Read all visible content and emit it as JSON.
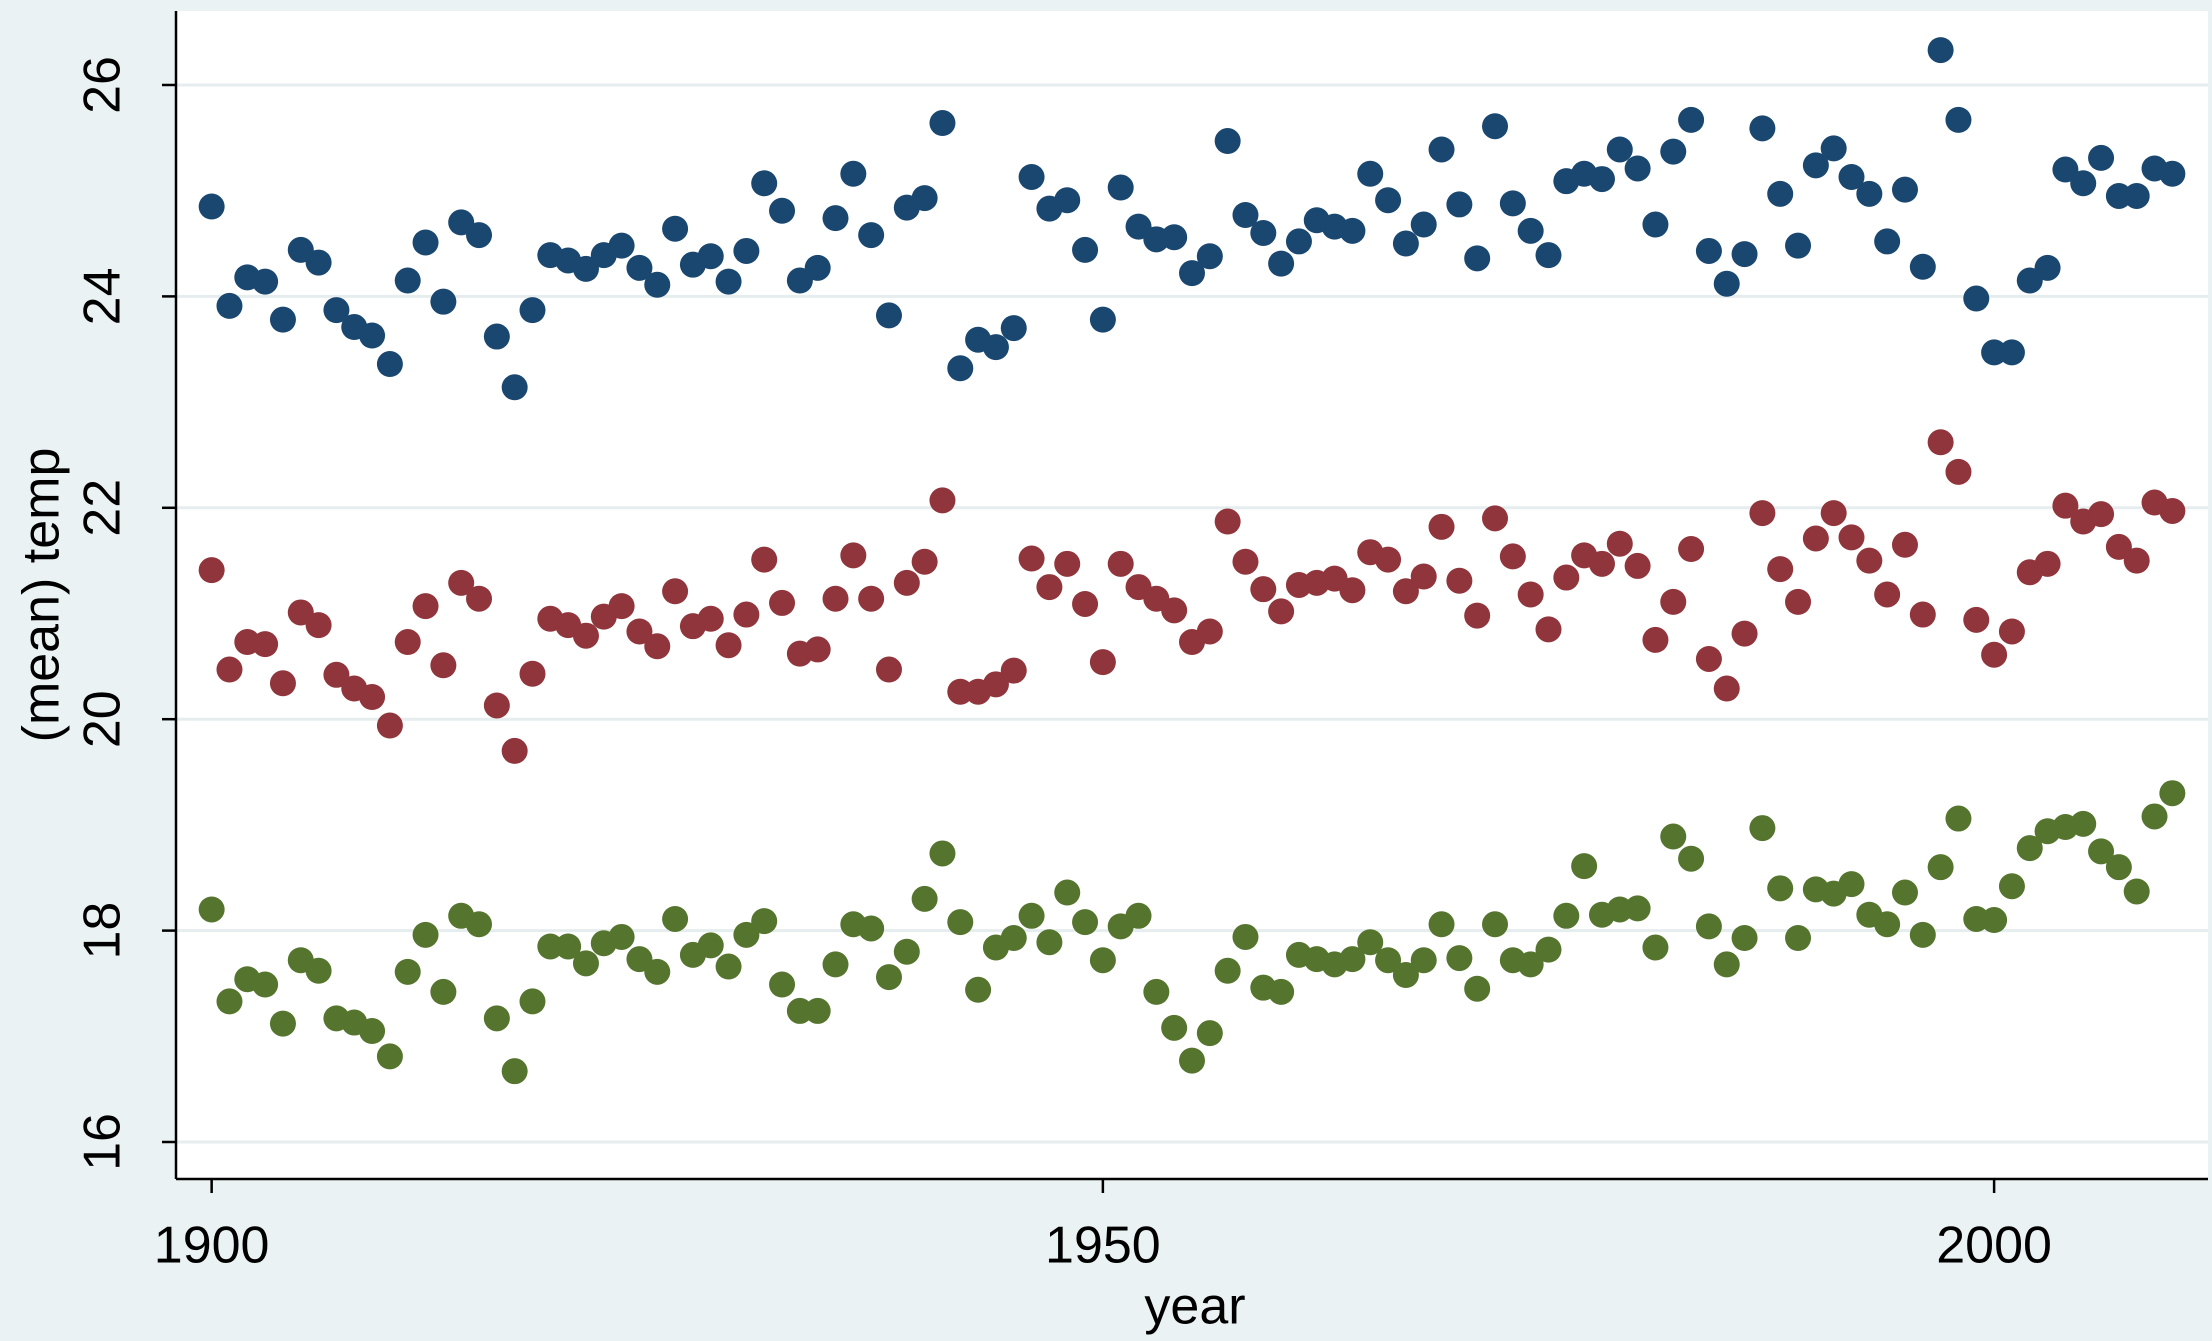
{
  "chart_data": {
    "type": "scatter",
    "x_label": "year",
    "y_label": "(mean) temp",
    "x": [
      1900,
      1901,
      1902,
      1903,
      1904,
      1905,
      1906,
      1907,
      1908,
      1909,
      1910,
      1911,
      1912,
      1913,
      1914,
      1915,
      1916,
      1917,
      1918,
      1919,
      1920,
      1921,
      1922,
      1923,
      1924,
      1925,
      1926,
      1927,
      1928,
      1929,
      1930,
      1931,
      1932,
      1933,
      1934,
      1935,
      1936,
      1937,
      1938,
      1939,
      1940,
      1941,
      1942,
      1943,
      1944,
      1945,
      1946,
      1947,
      1948,
      1949,
      1950,
      1951,
      1952,
      1953,
      1954,
      1955,
      1956,
      1957,
      1958,
      1959,
      1960,
      1961,
      1962,
      1963,
      1964,
      1965,
      1966,
      1967,
      1968,
      1969,
      1970,
      1971,
      1972,
      1973,
      1974,
      1975,
      1976,
      1977,
      1978,
      1979,
      1980,
      1981,
      1982,
      1983,
      1984,
      1985,
      1986,
      1987,
      1988,
      1989,
      1990,
      1991,
      1992,
      1993,
      1994,
      1995,
      1996,
      1997,
      1998,
      1999,
      2000,
      2001,
      2002,
      2003,
      2004,
      2005,
      2006,
      2007,
      2008,
      2009,
      2010
    ],
    "series": [
      {
        "color": "#1a476f",
        "values": [
          24.85,
          23.91,
          24.18,
          24.14,
          23.78,
          24.44,
          24.32,
          23.87,
          23.71,
          23.63,
          23.36,
          24.15,
          24.51,
          23.95,
          24.7,
          24.58,
          23.62,
          23.14,
          23.87,
          24.39,
          24.34,
          24.26,
          24.39,
          24.48,
          24.27,
          24.11,
          24.64,
          24.3,
          24.38,
          24.14,
          24.43,
          25.07,
          24.81,
          24.15,
          24.27,
          24.74,
          25.16,
          24.58,
          23.82,
          24.84,
          24.93,
          25.64,
          23.32,
          23.59,
          23.52,
          23.7,
          25.13,
          24.83,
          24.91,
          24.44,
          23.78,
          25.03,
          24.66,
          24.54,
          24.56,
          24.22,
          24.38,
          25.47,
          24.77,
          24.6,
          24.31,
          24.52,
          24.72,
          24.66,
          24.62,
          25.16,
          24.91,
          24.5,
          24.68,
          25.39,
          24.87,
          24.36,
          25.61,
          24.88,
          24.62,
          24.39,
          25.09,
          25.16,
          25.11,
          25.39,
          25.21,
          24.68,
          25.37,
          25.67,
          24.43,
          24.12,
          24.4,
          25.59,
          24.97,
          24.48,
          25.24,
          25.4,
          25.13,
          24.97,
          24.52,
          25.01,
          24.28,
          26.33,
          25.67,
          23.98,
          23.47,
          23.47,
          24.15,
          24.27,
          25.2,
          25.07,
          25.31,
          24.95,
          24.95,
          25.21,
          25.16
        ]
      },
      {
        "color": "#90353b",
        "values": [
          21.41,
          20.47,
          20.73,
          20.71,
          20.34,
          21.01,
          20.89,
          20.42,
          20.29,
          20.21,
          19.94,
          20.73,
          21.07,
          20.51,
          21.29,
          21.14,
          20.13,
          19.7,
          20.43,
          20.95,
          20.89,
          20.79,
          20.97,
          21.07,
          20.83,
          20.69,
          21.21,
          20.88,
          20.95,
          20.7,
          20.99,
          21.51,
          21.1,
          20.62,
          20.66,
          21.14,
          21.55,
          21.14,
          20.47,
          21.29,
          21.49,
          22.07,
          20.26,
          20.26,
          20.33,
          20.46,
          21.52,
          21.25,
          21.47,
          21.09,
          20.54,
          21.47,
          21.25,
          21.14,
          21.03,
          20.73,
          20.83,
          21.87,
          21.49,
          21.23,
          21.02,
          21.27,
          21.29,
          21.33,
          21.22,
          21.58,
          21.51,
          21.21,
          21.35,
          21.82,
          21.31,
          20.98,
          21.9,
          21.54,
          21.18,
          20.85,
          21.34,
          21.55,
          21.47,
          21.66,
          21.45,
          20.75,
          21.11,
          21.61,
          20.57,
          20.29,
          20.81,
          21.95,
          21.42,
          21.11,
          21.71,
          21.95,
          21.72,
          21.5,
          21.18,
          21.65,
          20.99,
          22.62,
          22.34,
          20.94,
          20.61,
          20.83,
          21.39,
          21.47,
          22.02,
          21.87,
          21.94,
          21.63,
          21.5,
          22.05,
          21.97
        ]
      },
      {
        "color": "#55752f",
        "values": [
          18.2,
          17.33,
          17.54,
          17.49,
          17.12,
          17.72,
          17.62,
          17.17,
          17.13,
          17.05,
          16.81,
          17.61,
          17.96,
          17.42,
          18.14,
          18.06,
          17.17,
          16.67,
          17.33,
          17.85,
          17.85,
          17.69,
          17.88,
          17.94,
          17.73,
          17.61,
          18.11,
          17.77,
          17.86,
          17.66,
          17.96,
          18.09,
          17.49,
          17.24,
          17.24,
          17.68,
          18.06,
          18.02,
          17.56,
          17.8,
          18.3,
          18.73,
          18.08,
          17.44,
          17.84,
          17.93,
          18.14,
          17.89,
          18.36,
          18.08,
          17.72,
          18.04,
          18.14,
          17.42,
          17.08,
          16.77,
          17.03,
          17.62,
          17.94,
          17.46,
          17.42,
          17.77,
          17.73,
          17.68,
          17.73,
          17.89,
          17.72,
          17.58,
          17.72,
          18.06,
          17.74,
          17.45,
          18.06,
          17.72,
          17.68,
          17.82,
          18.14,
          18.61,
          18.15,
          18.2,
          18.21,
          17.84,
          18.89,
          18.68,
          18.04,
          17.68,
          17.93,
          18.97,
          18.4,
          17.93,
          18.39,
          18.35,
          18.44,
          18.15,
          18.06,
          18.36,
          17.96,
          18.6,
          19.06,
          18.11,
          18.1,
          18.42,
          18.78,
          18.94,
          18.98,
          19.01,
          18.75,
          18.6,
          18.37,
          19.08,
          19.3
        ]
      }
    ],
    "xlim": [
      1898,
      2012
    ],
    "xticks": [
      1900,
      1950,
      2000
    ],
    "ylim": [
      15.65,
      26.7
    ],
    "yticks": [
      16,
      18,
      20,
      22,
      24,
      26
    ],
    "grid": true
  }
}
